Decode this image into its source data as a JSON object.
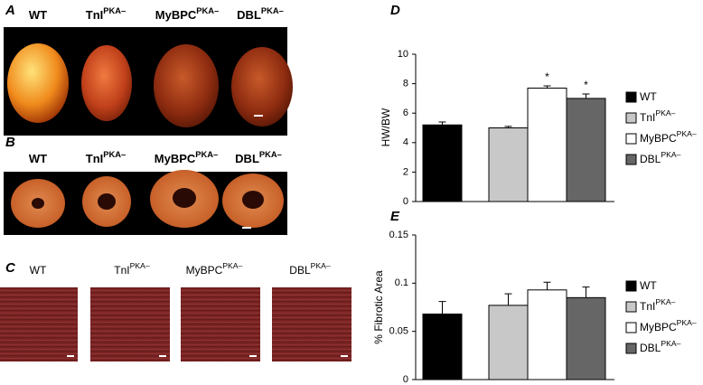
{
  "panel_a": {
    "label": "A",
    "headers": [
      {
        "name": "WT"
      },
      {
        "name": "TnI",
        "sup": "PKA–"
      },
      {
        "name": "MyBPC",
        "sup": "PKA–"
      },
      {
        "name": "DBL",
        "sup": "PKA–"
      }
    ]
  },
  "panel_b": {
    "label": "B",
    "headers": [
      {
        "name": "WT"
      },
      {
        "name": "TnI",
        "sup": "PKA–"
      },
      {
        "name": "MyBPC",
        "sup": "PKA–"
      },
      {
        "name": "DBL",
        "sup": "PKA–"
      }
    ]
  },
  "panel_c": {
    "label": "C",
    "headers": [
      {
        "name": "WT"
      },
      {
        "name": "TnI",
        "sup": "PKA–"
      },
      {
        "name": "MyBPC",
        "sup": "PKA–"
      },
      {
        "name": "DBL",
        "sup": "PKA–"
      }
    ]
  },
  "chart_data": [
    {
      "type": "bar",
      "label": "D",
      "ylabel": "HW/BW",
      "ylim": [
        0,
        10
      ],
      "yticks": [
        0,
        2,
        4,
        6,
        8,
        10
      ],
      "series": [
        {
          "name": "WT",
          "color": "#000000",
          "values": [
            5.2
          ],
          "errors": [
            0.2
          ]
        },
        {
          "name": "TnI",
          "sup": "PKA–",
          "color": "#c8c8c8",
          "values": [
            5.0
          ],
          "errors": [
            0.1
          ]
        },
        {
          "name": "MyBPC",
          "sup": "PKA–",
          "color": "#ffffff",
          "values": [
            7.7
          ],
          "errors": [
            0.15
          ],
          "annotation": "*"
        },
        {
          "name": "DBL",
          "sup": "PKA–",
          "color": "#666666",
          "values": [
            7.0
          ],
          "errors": [
            0.3
          ],
          "annotation": "*"
        }
      ]
    },
    {
      "type": "bar",
      "label": "E",
      "ylabel": "% Fibrotic Area",
      "ylim": [
        0,
        0.15
      ],
      "yticks": [
        0,
        0.05,
        0.1,
        0.15
      ],
      "series": [
        {
          "name": "WT",
          "color": "#000000",
          "values": [
            0.068
          ],
          "errors": [
            0.013
          ]
        },
        {
          "name": "TnI",
          "sup": "PKA–",
          "color": "#c8c8c8",
          "values": [
            0.077
          ],
          "errors": [
            0.012
          ]
        },
        {
          "name": "MyBPC",
          "sup": "PKA–",
          "color": "#ffffff",
          "values": [
            0.093
          ],
          "errors": [
            0.008
          ]
        },
        {
          "name": "DBL",
          "sup": "PKA–",
          "color": "#666666",
          "values": [
            0.085
          ],
          "errors": [
            0.011
          ]
        }
      ]
    }
  ]
}
